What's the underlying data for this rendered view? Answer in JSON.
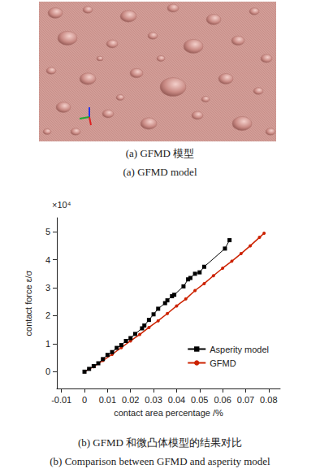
{
  "captions": [
    "(a) GFMD 模型",
    "(a) GFMD model",
    "(b) GFMD 和微凸体模型的结果对比",
    "(b) Comparison between GFMD and asperity model"
  ],
  "chart_data": {
    "type": "line",
    "x_label": "contact area percentage /%",
    "y_label": "contact force ε/σ",
    "annotations": [
      "×10⁴"
    ],
    "xlim": [
      -0.012,
      0.085
    ],
    "xticks": [
      -0.01,
      0,
      0.01,
      0.02,
      0.03,
      0.04,
      0.05,
      0.06,
      0.07,
      0.08
    ],
    "ylim": [
      -0.6,
      5.5
    ],
    "yticks": [
      0,
      1,
      2,
      3,
      4,
      5
    ],
    "grid": false,
    "legend": "lower right",
    "series": [
      {
        "name": "Asperity model",
        "color": "#000000",
        "marker": "square",
        "line_style": "solid",
        "x": [
          0,
          0.002,
          0.004,
          0.006,
          0.008,
          0.01,
          0.012,
          0.014,
          0.016,
          0.018,
          0.02,
          0.022,
          0.025,
          0.026,
          0.028,
          0.03,
          0.032,
          0.035,
          0.036,
          0.038,
          0.039,
          0.043,
          0.045,
          0.046,
          0.048,
          0.05,
          0.052,
          0.061,
          0.063
        ],
        "values": [
          0,
          0.1,
          0.2,
          0.3,
          0.45,
          0.6,
          0.7,
          0.85,
          0.95,
          1.1,
          1.2,
          1.35,
          1.55,
          1.65,
          1.85,
          2.05,
          2.25,
          2.45,
          2.55,
          2.7,
          2.75,
          3.05,
          3.3,
          3.35,
          3.5,
          3.55,
          3.75,
          4.4,
          4.7
        ]
      },
      {
        "name": "GFMD",
        "color": "#cc2200",
        "marker": "circle",
        "line_style": "solid",
        "x": [
          0,
          0.004,
          0.008,
          0.012,
          0.016,
          0.02,
          0.024,
          0.028,
          0.032,
          0.036,
          0.04,
          0.044,
          0.048,
          0.052,
          0.056,
          0.06,
          0.064,
          0.068,
          0.072,
          0.076,
          0.078
        ],
        "values": [
          0,
          0.18,
          0.4,
          0.62,
          0.86,
          1.1,
          1.33,
          1.58,
          1.82,
          2.08,
          2.35,
          2.6,
          2.9,
          3.15,
          3.43,
          3.7,
          3.95,
          4.22,
          4.5,
          4.8,
          4.95
        ]
      }
    ]
  }
}
